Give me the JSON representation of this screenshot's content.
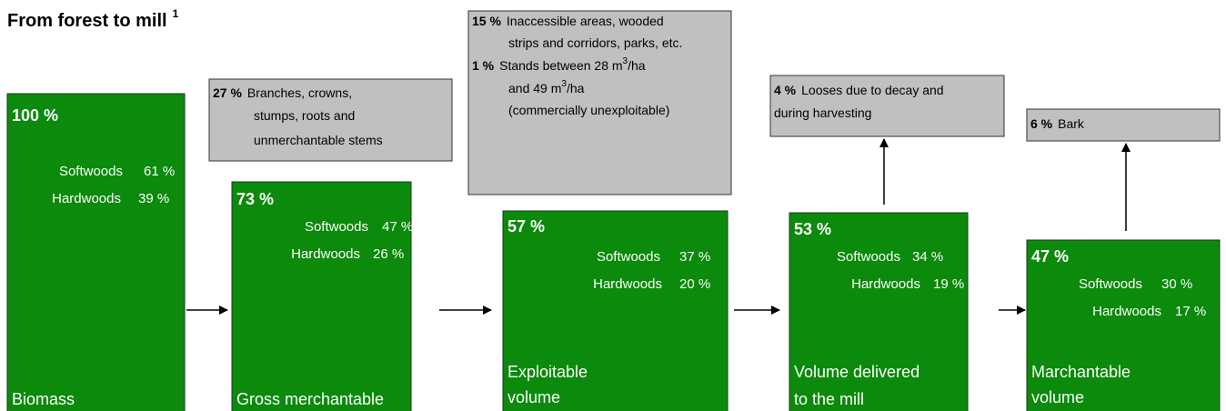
{
  "title": "From forest to mill",
  "title_note": "1",
  "stages": [
    {
      "percent": "100 %",
      "species": [
        {
          "name": "Softwoods",
          "value": "61 %"
        },
        {
          "name": "Hardwoods",
          "value": "39 %"
        }
      ],
      "label": [
        "Biomass"
      ]
    },
    {
      "percent": "73 %",
      "species": [
        {
          "name": "Softwoods",
          "value": "47 %"
        },
        {
          "name": "Hardwoods",
          "value": "26 %"
        }
      ],
      "label": [
        "Gross merchantable"
      ]
    },
    {
      "percent": "57 %",
      "species": [
        {
          "name": "Softwoods",
          "value": "37 %"
        },
        {
          "name": "Hardwoods",
          "value": "20 %"
        }
      ],
      "label": [
        "Exploitable",
        "volume"
      ]
    },
    {
      "percent": "53 %",
      "species": [
        {
          "name": "Softwoods",
          "value": "34 %"
        },
        {
          "name": "Hardwoods",
          "value": "19 %"
        }
      ],
      "label": [
        "Volume delivered",
        "to the mill"
      ]
    },
    {
      "percent": "47 %",
      "species": [
        {
          "name": "Softwoods",
          "value": "30 %"
        },
        {
          "name": "Hardwoods",
          "value": "17 %"
        }
      ],
      "label": [
        "Marchantable",
        "volume"
      ]
    }
  ],
  "losses": [
    {
      "items": [
        {
          "percent": "27 %",
          "lines": [
            [
              "Branches, crowns,"
            ],
            [
              "stumps, roots and"
            ],
            [
              "unmerchantable stems"
            ]
          ]
        }
      ]
    },
    {
      "items": [
        {
          "percent": "15 %",
          "lines": [
            [
              "Inaccessible areas, wooded"
            ],
            [
              "strips and corridors, parks, etc."
            ]
          ]
        },
        {
          "percent": "1 %",
          "lines": [
            [
              "Stands between 28  m",
              "3",
              "/ha"
            ],
            [
              "and 49 m",
              "3",
              "/ha"
            ],
            [
              "(commercially unexploitable)"
            ]
          ]
        }
      ]
    },
    {
      "items": [
        {
          "percent": "4 %",
          "lines": [
            [
              "Looses due to decay and"
            ],
            [
              "during harvesting"
            ]
          ]
        }
      ]
    },
    {
      "items": [
        {
          "percent": "6 %",
          "lines": [
            [
              "Bark"
            ]
          ]
        }
      ]
    }
  ]
}
